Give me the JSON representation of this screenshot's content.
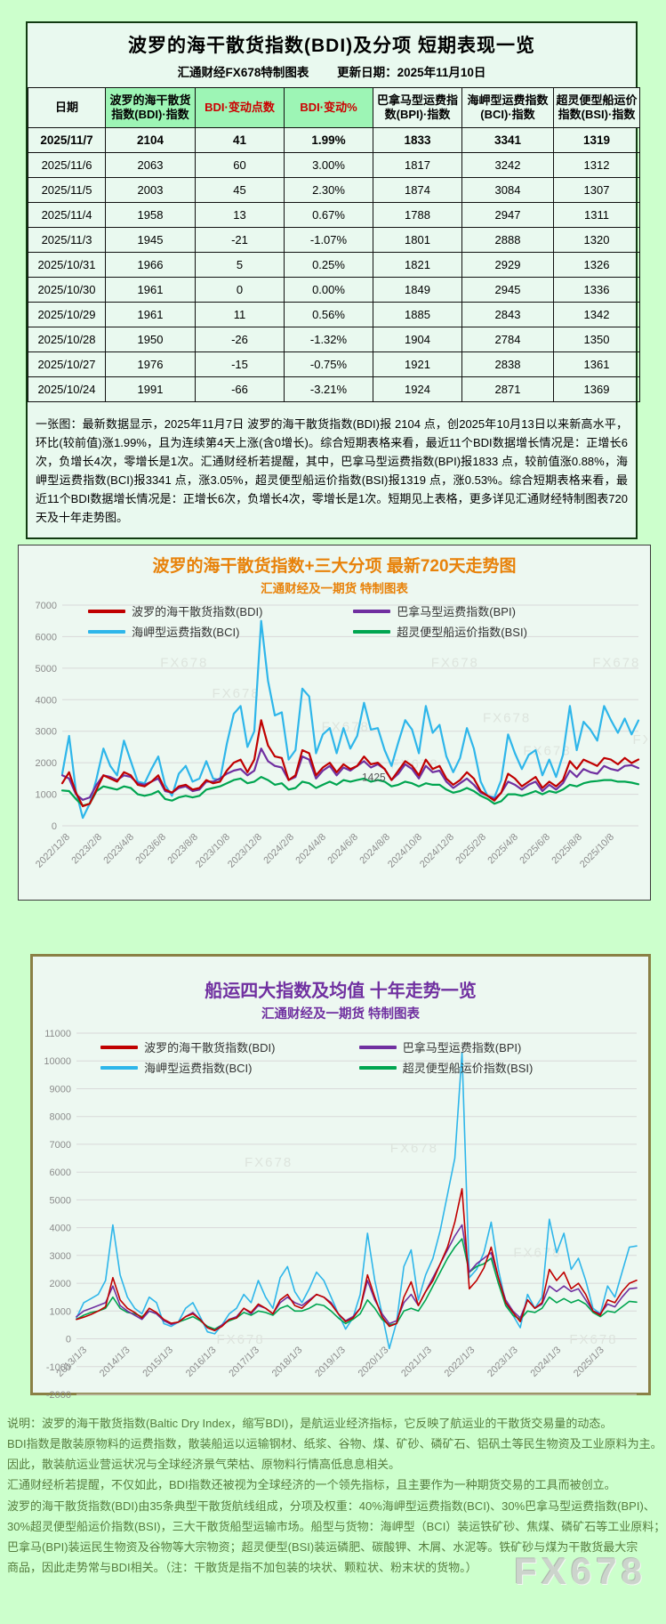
{
  "page": {
    "watermark": "FX678"
  },
  "colors": {
    "bdi": "#c00000",
    "bpi": "#7030a0",
    "bci": "#2eb6ea",
    "bsi": "#00a550",
    "grid": "#d9d9d9",
    "tick": "#8c8c8c",
    "watermark": "#dde4dd",
    "title720": "#e8820a",
    "title10y": "#7030a0",
    "header_green": "#9df5b5",
    "red_header_text": "#cc0000"
  },
  "summary_table": {
    "title": "波罗的海干散货指数(BDI)及分项  短期表现一览",
    "subtitle_left": "汇通财经FX678特制图表",
    "subtitle_right": "更新日期：2025年11月10日",
    "columns": [
      "日期",
      "波罗的海干散货指数(BDI)·指数",
      "BDI·变动点数",
      "BDI·变动%",
      "巴拿马型运费指数(BPI)·指数",
      "海岬型运费指数(BCI)·指数",
      "超灵便型船运价指数(BSI)·指数"
    ],
    "green_header_cols": [
      1,
      2,
      3
    ],
    "red_text_cols": [
      2,
      3
    ],
    "rows": [
      [
        "2025/11/7",
        "2104",
        "41",
        "1.99%",
        "1833",
        "3341",
        "1319"
      ],
      [
        "2025/11/6",
        "2063",
        "60",
        "3.00%",
        "1817",
        "3242",
        "1312"
      ],
      [
        "2025/11/5",
        "2003",
        "45",
        "2.30%",
        "1874",
        "3084",
        "1307"
      ],
      [
        "2025/11/4",
        "1958",
        "13",
        "0.67%",
        "1788",
        "2947",
        "1311"
      ],
      [
        "2025/11/3",
        "1945",
        "-21",
        "-1.07%",
        "1801",
        "2888",
        "1320"
      ],
      [
        "2025/10/31",
        "1966",
        "5",
        "0.25%",
        "1821",
        "2929",
        "1326"
      ],
      [
        "2025/10/30",
        "1961",
        "0",
        "0.00%",
        "1849",
        "2945",
        "1336"
      ],
      [
        "2025/10/29",
        "1961",
        "11",
        "0.56%",
        "1885",
        "2843",
        "1342"
      ],
      [
        "2025/10/28",
        "1950",
        "-26",
        "-1.32%",
        "1904",
        "2784",
        "1350"
      ],
      [
        "2025/10/27",
        "1976",
        "-15",
        "-0.75%",
        "1921",
        "2838",
        "1361"
      ],
      [
        "2025/10/24",
        "1991",
        "-66",
        "-3.21%",
        "1924",
        "2871",
        "1369"
      ]
    ],
    "analysis": "一张图：最新数据显示，2025年11月7日 波罗的海干散货指数(BDI)报 2104 点，创2025年10月13日以来新高水平，环比(较前值)涨1.99%，且为连续第4天上涨(含0增长)。综合短期表格来看，最近11个BDI数据增长情况是：正增长6次，负增长4次，零增长是1次。汇通财经析若提醒，其中，巴拿马型运费指数(BPI)报1833 点，较前值涨0.88%，海岬型运费指数(BCI)报3341 点，涨3.05%，超灵便型船运价指数(BSI)报1319 点，涨0.53%。综合短期表格来看，最近11个BDI数据增长情况是：正增长6次，负增长4次，零增长是1次。短期见上表格，更多详见汇通财经特制图表720天及十年走势图。"
  },
  "chart_data": [
    {
      "id": "trend720",
      "type": "line",
      "title": "波罗的海干散货指数+三大分项  最新720天走势图",
      "subtitle": "汇通财经及一期货 特制图表",
      "ylim": [
        0,
        7000
      ],
      "ytick_step": 1000,
      "grid": true,
      "legend_position": "top-inside",
      "x_labels": [
        "2022/12/8",
        "2023/2/8",
        "2023/4/8",
        "2023/6/8",
        "2023/8/8",
        "2023/10/8",
        "2023/12/8",
        "2024/2/8",
        "2024/4/8",
        "2024/6/8",
        "2024/8/8",
        "2024/10/8",
        "2024/12/8",
        "2025/2/8",
        "2025/4/8",
        "2025/6/8",
        "2025/8/8",
        "2025/10/8"
      ],
      "legend": [
        {
          "label": "波罗的海干散货指数(BDI)",
          "color_key": "bdi"
        },
        {
          "label": "巴拿马型运费指数(BPI)",
          "color_key": "bpi"
        },
        {
          "label": "海岬型运费指数(BCI)",
          "color_key": "bci"
        },
        {
          "label": "超灵便型船运价指数(BSI)",
          "color_key": "bsi"
        }
      ],
      "annotation": {
        "text": "1425",
        "x_frac": 0.52,
        "value": 1430
      },
      "watermarks": [
        [
          0.17,
          0.28
        ],
        [
          0.26,
          0.42
        ],
        [
          0.45,
          0.57
        ],
        [
          0.64,
          0.28
        ],
        [
          0.73,
          0.53
        ],
        [
          0.92,
          0.28
        ],
        [
          0.8,
          0.68
        ],
        [
          0.57,
          0.74
        ],
        [
          0.99,
          0.63
        ]
      ],
      "series": [
        {
          "name": "海岬型运费指数(BCI)",
          "color_key": "bci",
          "values": [
            1650,
            2850,
            1100,
            250,
            700,
            1500,
            2450,
            1900,
            1600,
            2700,
            2050,
            1400,
            1350,
            1800,
            2200,
            1300,
            950,
            1650,
            1900,
            1400,
            1500,
            2050,
            1500,
            1450,
            2600,
            3550,
            3800,
            2500,
            3000,
            6500,
            4600,
            3500,
            3600,
            2100,
            2400,
            4350,
            4100,
            2300,
            2900,
            3100,
            2300,
            3100,
            2450,
            2850,
            3900,
            3050,
            3100,
            2400,
            1900,
            2650,
            3350,
            3050,
            2300,
            3800,
            2950,
            3200,
            2200,
            1700,
            2150,
            3100,
            2450,
            1400,
            950,
            900,
            1450,
            2900,
            2300,
            1800,
            2250,
            2400,
            1600,
            2100,
            1550,
            2250,
            3800,
            2400,
            3300,
            3050,
            2700,
            3800,
            3350,
            2950,
            3400,
            2900,
            3341
          ]
        },
        {
          "name": "超灵便型船运价指数(BSI)",
          "color_key": "bsi",
          "values": [
            1120,
            1100,
            850,
            640,
            700,
            1100,
            1250,
            1200,
            1150,
            1250,
            1200,
            1000,
            950,
            1000,
            1100,
            850,
            800,
            900,
            950,
            900,
            950,
            1150,
            1200,
            1250,
            1350,
            1450,
            1500,
            1350,
            1400,
            1550,
            1450,
            1300,
            1350,
            1150,
            1200,
            1400,
            1350,
            1200,
            1300,
            1400,
            1300,
            1450,
            1400,
            1450,
            1500,
            1400,
            1450,
            1400,
            1250,
            1300,
            1400,
            1350,
            1250,
            1350,
            1300,
            1300,
            1150,
            1050,
            1100,
            1200,
            1100,
            950,
            850,
            700,
            780,
            1000,
            1000,
            950,
            1020,
            1100,
            1000,
            1100,
            1050,
            1150,
            1300,
            1250,
            1350,
            1400,
            1420,
            1450,
            1450,
            1400,
            1400,
            1369,
            1319
          ]
        },
        {
          "name": "巴拿马型运费指数(BPI)",
          "color_key": "bpi",
          "values": [
            1600,
            1500,
            1000,
            820,
            900,
            1300,
            1600,
            1550,
            1450,
            1600,
            1550,
            1350,
            1300,
            1400,
            1500,
            1100,
            1050,
            1200,
            1250,
            1100,
            1150,
            1400,
            1400,
            1500,
            1650,
            1750,
            1800,
            1600,
            1750,
            2450,
            2050,
            1900,
            1850,
            1450,
            1550,
            2200,
            2100,
            1500,
            1750,
            1900,
            1600,
            1850,
            1750,
            1900,
            2050,
            1850,
            1950,
            1800,
            1450,
            1650,
            1950,
            1800,
            1500,
            1900,
            1700,
            1750,
            1400,
            1200,
            1350,
            1500,
            1300,
            1050,
            950,
            850,
            1050,
            1400,
            1300,
            1150,
            1300,
            1400,
            1100,
            1300,
            1150,
            1350,
            1750,
            1550,
            1800,
            1700,
            1650,
            1900,
            1800,
            1750,
            1900,
            1921,
            1833
          ]
        },
        {
          "name": "波罗的海干散货指数(BDI)",
          "color_key": "bdi",
          "values": [
            1350,
            1700,
            1050,
            620,
            700,
            1150,
            1600,
            1500,
            1400,
            1700,
            1600,
            1300,
            1250,
            1400,
            1600,
            1150,
            1050,
            1250,
            1300,
            1150,
            1200,
            1450,
            1350,
            1400,
            1750,
            2000,
            2100,
            1700,
            2100,
            3350,
            2550,
            2200,
            2150,
            1450,
            1600,
            2400,
            2300,
            1600,
            1850,
            2000,
            1700,
            1950,
            1800,
            1900,
            2200,
            1950,
            2000,
            1800,
            1450,
            1750,
            2050,
            1900,
            1600,
            2100,
            1800,
            1900,
            1500,
            1300,
            1450,
            1700,
            1500,
            1100,
            950,
            800,
            1050,
            1650,
            1500,
            1250,
            1400,
            1550,
            1200,
            1400,
            1250,
            1450,
            2050,
            1800,
            2100,
            2000,
            1900,
            2150,
            2100,
            1950,
            2150,
            1991,
            2104
          ]
        }
      ]
    },
    {
      "id": "trend10y",
      "type": "line",
      "title": "船运四大指数及均值 十年走势一览",
      "subtitle": "汇通财经及一期货 特制图表",
      "ylim": [
        -2000,
        11000
      ],
      "ytick_step": 1000,
      "grid": true,
      "x_labels_at_zero": true,
      "legend_position": "top-inside",
      "x_labels": [
        "2013/1/3",
        "2014/1/3",
        "2015/1/3",
        "2016/1/3",
        "2017/1/3",
        "2018/1/3",
        "2019/1/3",
        "2020/1/3",
        "2021/1/3",
        "2022/1/3",
        "2023/1/3",
        "2024/1/3",
        "2025/1/3"
      ],
      "legend": [
        {
          "label": "波罗的海干散货指数(BDI)",
          "color_key": "bdi"
        },
        {
          "label": "巴拿马型运费指数(BPI)",
          "color_key": "bpi"
        },
        {
          "label": "海岬型运费指数(BCI)",
          "color_key": "bci"
        },
        {
          "label": "超灵便型船运价指数(BSI)",
          "color_key": "bsi"
        }
      ],
      "watermarks": [
        [
          0.3,
          0.37
        ],
        [
          0.56,
          0.33
        ],
        [
          0.78,
          0.62
        ],
        [
          0.25,
          0.86
        ],
        [
          0.88,
          0.86
        ]
      ],
      "series": [
        {
          "name": "海岬型运费指数(BCI)",
          "color_key": "bci",
          "values": [
            750,
            1300,
            1450,
            1600,
            2100,
            4100,
            2300,
            1500,
            1100,
            900,
            1500,
            1300,
            550,
            450,
            600,
            1100,
            1300,
            800,
            250,
            180,
            500,
            900,
            1100,
            1600,
            1300,
            2100,
            1500,
            1100,
            2200,
            2600,
            1700,
            1300,
            1800,
            2400,
            2100,
            1500,
            900,
            350,
            750,
            1600,
            3800,
            2100,
            900,
            -350,
            600,
            2600,
            3200,
            1400,
            2300,
            2900,
            3900,
            5200,
            6500,
            10300,
            2200,
            2500,
            3100,
            4200,
            2500,
            1300,
            850,
            400,
            1600,
            1100,
            1500,
            4300,
            3100,
            3800,
            2500,
            2900,
            2100,
            1100,
            900,
            1900,
            1500,
            2400,
            3300,
            3341
          ]
        },
        {
          "name": "超灵便型船运价指数(BSI)",
          "color_key": "bsi",
          "values": [
            700,
            850,
            950,
            1000,
            1100,
            1500,
            1100,
            950,
            900,
            800,
            1000,
            900,
            650,
            550,
            600,
            700,
            800,
            650,
            450,
            350,
            500,
            650,
            750,
            950,
            850,
            1000,
            950,
            850,
            1100,
            1200,
            1000,
            1000,
            1100,
            1250,
            1200,
            1000,
            750,
            550,
            700,
            900,
            1400,
            1100,
            700,
            500,
            550,
            1000,
            1100,
            1000,
            1400,
            1900,
            2400,
            2900,
            3300,
            3600,
            2400,
            2600,
            2700,
            2900,
            2000,
            1200,
            850,
            700,
            1000,
            950,
            1100,
            1500,
            1300,
            1450,
            1300,
            1400,
            1250,
            950,
            800,
            1000,
            950,
            1150,
            1350,
            1319
          ]
        },
        {
          "name": "巴拿马型运费指数(BPI)",
          "color_key": "bpi",
          "values": [
            800,
            1000,
            1100,
            1200,
            1300,
            1900,
            1200,
            1000,
            850,
            700,
            1000,
            900,
            650,
            520,
            600,
            800,
            950,
            700,
            400,
            300,
            500,
            700,
            800,
            1100,
            900,
            1200,
            1100,
            900,
            1300,
            1500,
            1300,
            1200,
            1400,
            1600,
            1500,
            1300,
            900,
            650,
            800,
            1100,
            2100,
            1400,
            900,
            550,
            650,
            1300,
            1600,
            1200,
            1700,
            2200,
            2700,
            3200,
            3700,
            4100,
            2400,
            2700,
            2900,
            3100,
            2200,
            1400,
            1000,
            750,
            1400,
            1100,
            1250,
            1900,
            1700,
            1900,
            1700,
            1800,
            1400,
            1000,
            900,
            1250,
            1150,
            1500,
            1800,
            1833
          ]
        },
        {
          "name": "波罗的海干散货指数(BDI)",
          "color_key": "bdi",
          "values": [
            700,
            780,
            880,
            1000,
            1150,
            2200,
            1400,
            1100,
            950,
            750,
            1100,
            950,
            700,
            560,
            600,
            800,
            900,
            700,
            400,
            300,
            450,
            700,
            750,
            1100,
            950,
            1250,
            1100,
            900,
            1400,
            1600,
            1200,
            1100,
            1350,
            1600,
            1500,
            1250,
            900,
            620,
            750,
            1100,
            2300,
            1500,
            800,
            450,
            550,
            1500,
            2050,
            1200,
            1700,
            2100,
            2700,
            3300,
            4200,
            5400,
            1800,
            2100,
            2550,
            3300,
            2200,
            1300,
            950,
            620,
            1400,
            1100,
            1300,
            2500,
            2100,
            2400,
            1800,
            2000,
            1600,
            1000,
            850,
            1400,
            1300,
            1700,
            2000,
            2104
          ]
        }
      ]
    }
  ],
  "footer": {
    "lines": [
      "说明：波罗的海干散货指数(Baltic Dry Index，缩写BDI)，是航运业经济指标，它反映了航运业的干散货交易量的动态。",
      "BDI指数是散装原物料的运费指数，散装船运以运输钢材、纸浆、谷物、煤、矿砂、磷矿石、铝矾土等民生物资及工业原料为主。",
      "因此，散装航运业营运状况与全球经济景气荣枯、原物料行情高低息息相关。",
      "汇通财经析若提醒，不仅如此，BDI指数还被视为全球经济的一个领先指标，且主要作为一种期货交易的工具而被创立。",
      "波罗的海干散货指数(BDI)由35条典型干散货航线组成，分项及权重：40%海岬型运费指数(BCI)、30%巴拿马型运费指数(BPI)、",
      "30%超灵便型船运价指数(BSI)，三大干散货船型运输市场。船型与货物：海岬型（BCI）装运铁矿砂、焦煤、磷矿石等工业原料；",
      "巴拿马(BPI)装运民生物资及谷物等大宗物资；超灵便型(BSI)装运磷肥、碳酸钾、木屑、水泥等。铁矿砂与煤为干散货最大宗",
      "商品，因此走势常与BDI相关。（注：干散货是指不加包装的块状、颗粒状、粉末状的货物。）"
    ]
  }
}
